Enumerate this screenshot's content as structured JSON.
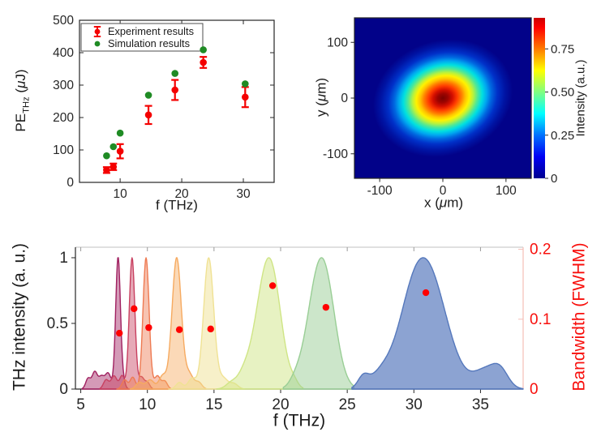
{
  "figure": {
    "background": "#ffffff"
  },
  "chart_data": [
    {
      "type": "scatter",
      "panel": "thz-pulse-energy",
      "xlabel": "f (THz)",
      "ylabel": "PE_THz (μJ)",
      "ylabel_parts": {
        "pre": "PE",
        "sub": "THz",
        "open": " (",
        "mu": "μ",
        "close": "J)"
      },
      "xlim": [
        3.4,
        35
      ],
      "ylim": [
        0,
        500
      ],
      "xticks": [
        10,
        20,
        30
      ],
      "yticks": [
        0,
        100,
        200,
        300,
        400,
        500
      ],
      "x": [
        7.8,
        8.9,
        10.0,
        14.6,
        18.9,
        23.5,
        30.3
      ],
      "series": [
        {
          "name": "Experiment results",
          "marker": "errorbar",
          "color": "#f40000",
          "values": [
            38,
            48,
            96,
            208,
            285,
            370,
            263
          ],
          "errors": [
            9,
            10,
            22,
            28,
            31,
            17,
            31
          ]
        },
        {
          "name": "Simulation results",
          "marker": "dot",
          "color": "#1f8b24",
          "values": [
            82,
            110,
            152,
            269,
            336,
            409,
            304
          ]
        }
      ],
      "legend_position": "top-left",
      "grid": false
    },
    {
      "type": "heatmap",
      "panel": "beam-profile",
      "xlabel": "x (μm)",
      "ylabel": "y (μm)",
      "xlabel_parts": {
        "axis": "x",
        "open": " (",
        "mu": "μ",
        "close": "m)"
      },
      "ylabel_parts": {
        "axis": "y",
        "open": " (",
        "mu": "μ",
        "close": "m)"
      },
      "xlim": [
        -140,
        140
      ],
      "ylim": [
        -144,
        144
      ],
      "xticks": [
        -100,
        0,
        100
      ],
      "yticks": [
        -100,
        0,
        100
      ],
      "xtick_labels": [
        "-100",
        "0",
        "100"
      ],
      "ytick_labels": [
        "-100",
        "0",
        "100"
      ],
      "colormap": "jet",
      "background_value_color": "#020289",
      "beam": {
        "center_x": 0,
        "center_y": 0,
        "rx_um": 122,
        "ry_um": 112,
        "rotation_deg": -18,
        "peak_intensity": 0.9
      },
      "colorbar": {
        "label": "Intensity (a.u.)",
        "max": 0.93,
        "ticks": [
          0,
          0.25,
          0.5,
          0.75
        ],
        "tick_labels": [
          "0",
          "0.25",
          "0.50",
          "0.75"
        ]
      }
    },
    {
      "type": "area",
      "panel": "thz-spectra",
      "xlabel": "f (THz)",
      "ylabel_left": "THz intensity (a. u.)",
      "ylabel_right": "Bandwidth (FWHM)",
      "right_color": "#f80f0c",
      "xlim": [
        4.6,
        38.2
      ],
      "ylim_left": [
        0,
        1.08
      ],
      "ylim_right": [
        0,
        0.203
      ],
      "xticks": [
        5,
        10,
        15,
        20,
        25,
        30,
        35
      ],
      "yticks_left": {
        "values": [
          0,
          0.5,
          1
        ],
        "labels": [
          "0",
          "0.5",
          "1"
        ]
      },
      "yticks_right": {
        "values": [
          0,
          0.1,
          0.2
        ],
        "labels": [
          "0",
          "0.1",
          "0.2"
        ]
      },
      "spectra": [
        {
          "center": 7.8,
          "color": "#a02060",
          "fill_opacity": 0.45,
          "range": [
            5.1,
            8.65
          ],
          "components": [
            [
              7.8,
              1,
              0.18
            ],
            [
              5.55,
              0.08,
              0.18
            ],
            [
              6.05,
              0.13,
              0.2
            ],
            [
              6.55,
              0.09,
              0.2
            ],
            [
              7.05,
              0.12,
              0.22
            ],
            [
              8.2,
              0.05,
              0.15
            ]
          ]
        },
        {
          "center": 8.85,
          "color": "#c84060",
          "fill_opacity": 0.45,
          "range": [
            6.45,
            10.4
          ],
          "components": [
            [
              8.85,
              1,
              0.21
            ],
            [
              6.9,
              0.07,
              0.2
            ],
            [
              7.5,
              0.1,
              0.22
            ],
            [
              8.1,
              0.1,
              0.18
            ],
            [
              9.55,
              0.09,
              0.2
            ],
            [
              10,
              0.05,
              0.18
            ]
          ]
        },
        {
          "center": 9.9,
          "color": "#ee7a52",
          "fill_opacity": 0.45,
          "range": [
            7.7,
            11.9
          ],
          "components": [
            [
              9.9,
              1,
              0.23
            ],
            [
              8.3,
              0.07,
              0.2
            ],
            [
              8.9,
              0.09,
              0.2
            ],
            [
              10.75,
              0.1,
              0.22
            ],
            [
              11.3,
              0.06,
              0.2
            ]
          ]
        },
        {
          "center": 12.2,
          "color": "#f6aa60",
          "fill_opacity": 0.45,
          "range": [
            8.7,
            14.4
          ],
          "components": [
            [
              12.2,
              1,
              0.35
            ],
            [
              9.4,
              0.05,
              0.25
            ],
            [
              10.2,
              0.07,
              0.3
            ],
            [
              11.15,
              0.1,
              0.28
            ],
            [
              13.15,
              0.11,
              0.3
            ],
            [
              13.85,
              0.05,
              0.25
            ]
          ]
        },
        {
          "center": 14.6,
          "color": "#f0e294",
          "fill_opacity": 0.5,
          "range": [
            11.6,
            17.3
          ],
          "components": [
            [
              14.6,
              1,
              0.38
            ],
            [
              12.4,
              0.05,
              0.25
            ],
            [
              13.35,
              0.08,
              0.3
            ],
            [
              15.7,
              0.08,
              0.35
            ],
            [
              16.5,
              0.04,
              0.3
            ]
          ]
        },
        {
          "center": 19.35,
          "color": "#cfe585",
          "fill_opacity": 0.5,
          "range": [
            15.2,
            21.7
          ],
          "components": [
            [
              19.35,
              1,
              0.75
            ],
            [
              18.45,
              0.5,
              0.75
            ],
            [
              17.2,
              0.1,
              0.45
            ],
            [
              16.3,
              0.06,
              0.4
            ],
            [
              21.0,
              0.05,
              0.3
            ]
          ]
        },
        {
          "center": 23.2,
          "color": "#99ce95",
          "fill_opacity": 0.5,
          "range": [
            20.2,
            25.5
          ],
          "components": [
            [
              23.2,
              1,
              0.85
            ],
            [
              22.2,
              0.22,
              0.7
            ],
            [
              21.1,
              0.06,
              0.45
            ]
          ]
        },
        {
          "center": 30.9,
          "color": "#5578bc",
          "fill_opacity": 0.68,
          "range": [
            25.35,
            38.2
          ],
          "components": [
            [
              30.9,
              1,
              1.5
            ],
            [
              29.6,
              0.15,
              1.0
            ],
            [
              26.2,
              0.09,
              0.4
            ],
            [
              27.5,
              0.1,
              0.8
            ],
            [
              35.4,
              0.15,
              0.9
            ],
            [
              36.5,
              0.12,
              0.6
            ]
          ]
        }
      ],
      "bandwidth_points": {
        "color": "#ff0000",
        "x": [
          7.9,
          9.0,
          10.1,
          12.4,
          14.75,
          19.4,
          23.4,
          30.9
        ],
        "values": [
          0.08,
          0.115,
          0.088,
          0.085,
          0.086,
          0.148,
          0.117,
          0.138
        ]
      },
      "grid": false
    }
  ]
}
